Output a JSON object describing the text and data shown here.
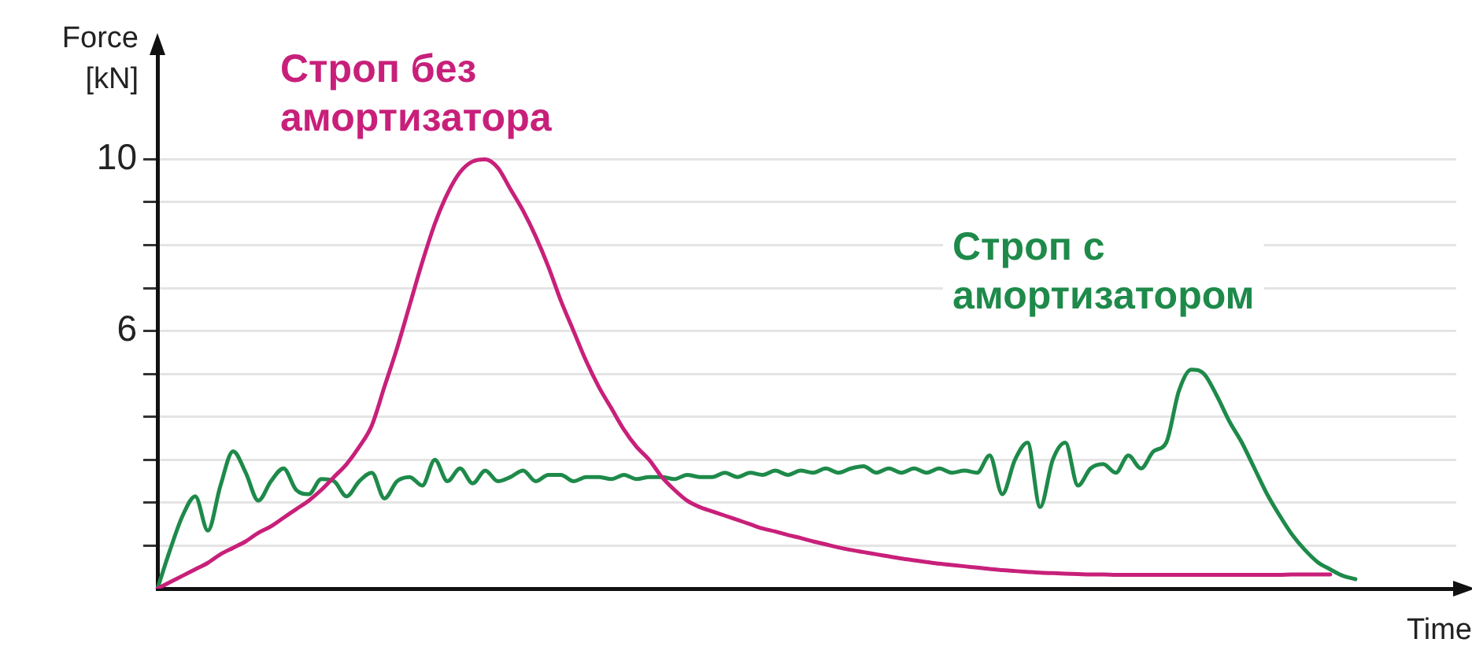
{
  "chart_data": {
    "type": "line",
    "ylabel": "Force [kN]",
    "xlabel": "Time",
    "categories": [
      null,
      null,
      null,
      null,
      null,
      null,
      null,
      null,
      null,
      null,
      null,
      null,
      null,
      null,
      null,
      null,
      null,
      null,
      null,
      null,
      null,
      null,
      null,
      null,
      null,
      null,
      null,
      null,
      null,
      null,
      null,
      null,
      null,
      null,
      null,
      null,
      null,
      null,
      null,
      null,
      null,
      null,
      null,
      null,
      null,
      null,
      null,
      null,
      null,
      null,
      null,
      null,
      null,
      null,
      null,
      null,
      null,
      null,
      null,
      null,
      null,
      null,
      null,
      null,
      null,
      null,
      null,
      null,
      null,
      null,
      null,
      null,
      null,
      null,
      null,
      null,
      null,
      null,
      null,
      null,
      null,
      null,
      null,
      null,
      null,
      null,
      null,
      null,
      null,
      null,
      null,
      null,
      null,
      null,
      null,
      null,
      null,
      null,
      null,
      null,
      null,
      null,
      null,
      null
    ],
    "series": [
      {
        "name": "Строп без амортизатора",
        "color": "#c8207a",
        "values": [
          0,
          0.15,
          0.3,
          0.45,
          0.6,
          0.8,
          0.95,
          1.1,
          1.3,
          1.45,
          1.65,
          1.85,
          2.05,
          2.3,
          2.6,
          2.9,
          3.3,
          3.8,
          4.7,
          5.6,
          6.6,
          7.6,
          8.5,
          9.2,
          9.7,
          9.95,
          10,
          9.8,
          9.3,
          8.8,
          8.2,
          7.5,
          6.7,
          6,
          5.3,
          4.7,
          4.2,
          3.7,
          3.3,
          3,
          2.6,
          2.3,
          2.05,
          1.9,
          1.8,
          1.7,
          1.6,
          1.5,
          1.4,
          1.33,
          1.25,
          1.18,
          1.1,
          1.03,
          0.96,
          0.9,
          0.85,
          0.8,
          0.75,
          0.7,
          0.66,
          0.62,
          0.58,
          0.55,
          0.52,
          0.49,
          0.46,
          0.43,
          0.41,
          0.39,
          0.37,
          0.36,
          0.35,
          0.34,
          0.33,
          0.33,
          0.32,
          0.32,
          0.32,
          0.32,
          0.32,
          0.32,
          0.32,
          0.32,
          0.32,
          0.32,
          0.32,
          0.32,
          0.32,
          0.32,
          0.33,
          0.33,
          0.33,
          0.33,
          null,
          null,
          null,
          null,
          null,
          null,
          null,
          null,
          null,
          null
        ]
      },
      {
        "name": "Строп с амортизатором",
        "color": "#1e8a4a",
        "values": [
          0,
          0.9,
          1.7,
          2.15,
          1.35,
          2.4,
          3.2,
          2.7,
          2.05,
          2.5,
          2.8,
          2.3,
          2.2,
          2.55,
          2.5,
          2.15,
          2.5,
          2.7,
          2.1,
          2.5,
          2.6,
          2.4,
          3,
          2.5,
          2.8,
          2.45,
          2.75,
          2.5,
          2.6,
          2.75,
          2.5,
          2.65,
          2.65,
          2.5,
          2.6,
          2.6,
          2.55,
          2.65,
          2.55,
          2.6,
          2.6,
          2.55,
          2.65,
          2.6,
          2.6,
          2.7,
          2.6,
          2.7,
          2.65,
          2.75,
          2.65,
          2.75,
          2.7,
          2.8,
          2.7,
          2.8,
          2.85,
          2.7,
          2.8,
          2.7,
          2.8,
          2.7,
          2.8,
          2.7,
          2.75,
          2.7,
          3.1,
          2.2,
          3,
          3.4,
          1.9,
          3,
          3.4,
          2.4,
          2.8,
          2.9,
          2.7,
          3.1,
          2.8,
          3.2,
          3.4,
          4.6,
          5.1,
          5,
          4.5,
          3.9,
          3.4,
          2.8,
          2.2,
          1.7,
          1.25,
          0.9,
          0.62,
          0.45,
          0.3,
          0.22,
          null,
          null,
          null,
          null,
          null,
          null,
          null,
          null
        ]
      }
    ],
    "ylim": [
      0,
      12.5
    ],
    "yticks": [
      {
        "value": 1,
        "label": null
      },
      {
        "value": 2,
        "label": null
      },
      {
        "value": 3,
        "label": null
      },
      {
        "value": 4,
        "label": null
      },
      {
        "value": 5,
        "label": null
      },
      6,
      {
        "value": 7,
        "label": null
      },
      {
        "value": 8,
        "label": null
      },
      {
        "value": 9,
        "label": null
      },
      10
    ],
    "grid": "y",
    "legend": false,
    "tick_labels": "y",
    "marker": "none"
  }
}
